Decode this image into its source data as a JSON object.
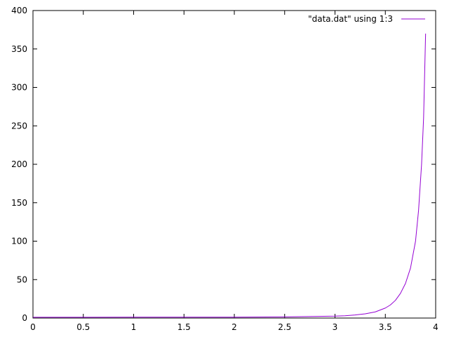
{
  "chart_data": {
    "type": "line",
    "title": "",
    "xlabel": "",
    "ylabel": "",
    "xlim": [
      0,
      4
    ],
    "ylim": [
      0,
      400
    ],
    "x_ticks": [
      0,
      0.5,
      1,
      1.5,
      2,
      2.5,
      3,
      3.5,
      4
    ],
    "x_tick_labels": [
      "0",
      "0.5",
      "1",
      "1.5",
      "2",
      "2.5",
      "3",
      "3.5",
      "4"
    ],
    "y_ticks": [
      0,
      50,
      100,
      150,
      200,
      250,
      300,
      350,
      400
    ],
    "y_tick_labels": [
      "0",
      "50",
      "100",
      "150",
      "200",
      "250",
      "300",
      "350",
      "400"
    ],
    "grid": false,
    "legend_position": "top-right",
    "series": [
      {
        "name": "\"data.dat\" using 1:3",
        "color": "#9400d3",
        "x": [
          0,
          0.5,
          1,
          1.5,
          2,
          2.5,
          3,
          3.1,
          3.2,
          3.3,
          3.4,
          3.5,
          3.55,
          3.6,
          3.65,
          3.7,
          3.75,
          3.8,
          3.83,
          3.86,
          3.88,
          3.9
        ],
        "y": [
          1,
          1,
          1.1,
          1.1,
          1.2,
          1.5,
          2.5,
          3,
          4,
          5.5,
          8,
          13,
          17,
          23,
          32,
          45,
          65,
          100,
          140,
          200,
          260,
          370
        ]
      }
    ]
  }
}
